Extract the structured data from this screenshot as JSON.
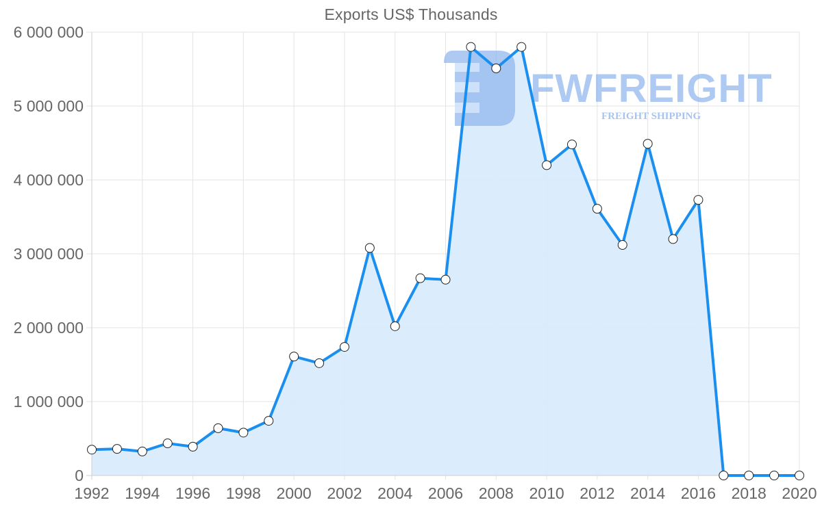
{
  "chart_data": {
    "type": "line",
    "title": "Exports US$ Thousands",
    "xlabel": "",
    "ylabel": "",
    "ylim": [
      0,
      6000000
    ],
    "xlim": [
      1992,
      2020
    ],
    "grid": true,
    "legend": null,
    "fill_area": true,
    "x_tick_labels": [
      "1992",
      "1994",
      "1996",
      "1998",
      "2000",
      "2002",
      "2004",
      "2006",
      "2008",
      "2010",
      "2012",
      "2014",
      "2016",
      "2018",
      "2020"
    ],
    "y_tick_labels": [
      "0",
      "1 000 000",
      "2 000 000",
      "3 000 000",
      "4 000 000",
      "5 000 000",
      "6 000 000"
    ],
    "y_ticks": [
      0,
      1000000,
      2000000,
      3000000,
      4000000,
      5000000,
      6000000
    ],
    "x": [
      1992,
      1993,
      1994,
      1995,
      1996,
      1997,
      1998,
      1999,
      2000,
      2001,
      2002,
      2003,
      2004,
      2005,
      2006,
      2007,
      2008,
      2009,
      2010,
      2011,
      2012,
      2013,
      2014,
      2015,
      2016,
      2017,
      2018,
      2019,
      2020
    ],
    "series": [
      {
        "name": "Exports US$ Thousands",
        "values": [
          350000,
          360000,
          325000,
          435000,
          390000,
          640000,
          580000,
          740000,
          1610000,
          1520000,
          1740000,
          3080000,
          2020000,
          2670000,
          2650000,
          5800000,
          5510000,
          5800000,
          4200000,
          4480000,
          3610000,
          3120000,
          4490000,
          3200000,
          3730000,
          0,
          0,
          0,
          0
        ]
      }
    ]
  },
  "colors": {
    "line": "#1a8fef",
    "fill": "#d9ecfc",
    "point_fill": "#ffffff",
    "point_stroke": "#222222",
    "grid": "#e3e3e3",
    "axis": "#cfcfcf",
    "tick_text": "#666666",
    "watermark": "#8fb6ee"
  },
  "watermark": {
    "brand": "FWFREIGHT",
    "tagline": "FREIGHT SHIPPING"
  }
}
